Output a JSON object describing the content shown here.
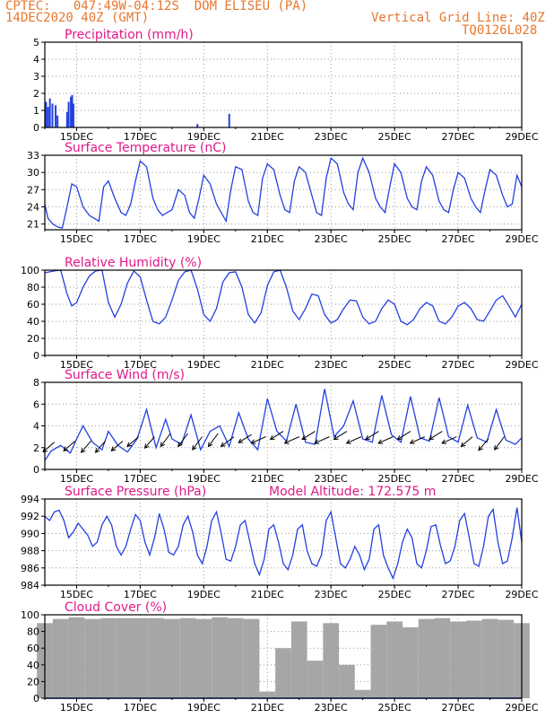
{
  "header": {
    "left_line1": "CPTEC:   047:49W-04:12S  DOM ELISEU (PA)",
    "left_line2": "14DEC2020 40Z (GMT)",
    "right_line1": "Vertical Grid Line: 40Z",
    "right_line2": "TQ0126L028"
  },
  "colors": {
    "header": "#e8762d",
    "title": "#e0198a",
    "line": "#2340e0",
    "bars": "#a6a6a6",
    "arrows": "#000000"
  },
  "x_ticks": [
    "15DEC",
    "17DEC",
    "19DEC",
    "21DEC",
    "23DEC",
    "25DEC",
    "27DEC",
    "29DEC"
  ],
  "x_tick_positions_days": [
    1,
    3,
    5,
    7,
    9,
    11,
    13,
    15
  ],
  "x_range_days": [
    0,
    15
  ],
  "chart_data": [
    {
      "name": "precipitation",
      "type": "bar",
      "title": "Precipitation (mm/h)",
      "ylim": [
        0,
        5
      ],
      "yticks": [
        0,
        1,
        2,
        3,
        4,
        5
      ],
      "x": [
        0.04,
        0.1,
        0.16,
        0.24,
        0.34,
        0.4,
        0.7,
        0.75,
        0.82,
        0.86,
        0.9,
        4.8,
        5.8,
        13.5,
        14.3
      ],
      "values": [
        1.5,
        1.2,
        1.7,
        1.4,
        1.3,
        0.7,
        0.9,
        1.5,
        1.8,
        1.9,
        1.4,
        0.2,
        0.8,
        0.05,
        0.05
      ]
    },
    {
      "name": "surface-temperature",
      "type": "line",
      "title": "Surface Temperature (nC)",
      "ylim": [
        20,
        33
      ],
      "yticks": [
        21,
        24,
        27,
        30,
        33
      ],
      "x": [
        0,
        0.1,
        0.25,
        0.4,
        0.55,
        0.7,
        0.85,
        1.0,
        1.2,
        1.4,
        1.55,
        1.7,
        1.85,
        2.0,
        2.2,
        2.4,
        2.55,
        2.7,
        2.85,
        3.0,
        3.2,
        3.4,
        3.55,
        3.7,
        3.85,
        4.0,
        4.2,
        4.4,
        4.55,
        4.7,
        4.85,
        5.0,
        5.2,
        5.4,
        5.55,
        5.7,
        5.85,
        6.0,
        6.2,
        6.4,
        6.55,
        6.7,
        6.85,
        7.0,
        7.2,
        7.4,
        7.55,
        7.7,
        7.85,
        8.0,
        8.2,
        8.4,
        8.55,
        8.7,
        8.85,
        9.0,
        9.2,
        9.4,
        9.55,
        9.7,
        9.85,
        10.0,
        10.2,
        10.4,
        10.55,
        10.7,
        10.85,
        11.0,
        11.2,
        11.4,
        11.55,
        11.7,
        11.85,
        12.0,
        12.2,
        12.4,
        12.55,
        12.7,
        12.85,
        13.0,
        13.2,
        13.4,
        13.55,
        13.7,
        13.85,
        14.0,
        14.2,
        14.4,
        14.55,
        14.7,
        14.85,
        15.0
      ],
      "values": [
        24.5,
        22.0,
        21.0,
        20.5,
        20.3,
        24.0,
        28.0,
        27.5,
        24.0,
        22.5,
        22.0,
        21.5,
        27.5,
        28.5,
        25.5,
        23.0,
        22.5,
        24.5,
        28.5,
        32.0,
        31.0,
        25.5,
        23.5,
        22.5,
        23.0,
        23.5,
        27.0,
        26.0,
        23.0,
        22.0,
        25.5,
        29.5,
        28.0,
        24.5,
        23.0,
        21.5,
        27.0,
        31.0,
        30.5,
        25.0,
        23.0,
        22.5,
        29.0,
        31.5,
        30.5,
        26.0,
        23.5,
        23.0,
        28.5,
        31.0,
        30.0,
        26.0,
        23.0,
        22.5,
        29.0,
        32.5,
        31.5,
        26.5,
        24.5,
        23.5,
        30.0,
        32.5,
        30.0,
        25.5,
        24.0,
        23.0,
        27.5,
        31.5,
        30.0,
        25.5,
        24.0,
        23.5,
        28.5,
        31.0,
        29.5,
        25.0,
        23.5,
        23.0,
        27.0,
        30.0,
        29.0,
        25.5,
        24.0,
        23.0,
        27.0,
        30.5,
        29.5,
        26.0,
        24.0,
        24.5,
        29.5,
        27.5
      ]
    },
    {
      "name": "relative-humidity",
      "type": "line",
      "title": "Relative Humidity (%)",
      "ylim": [
        0,
        100
      ],
      "yticks": [
        0,
        20,
        40,
        60,
        80,
        100
      ],
      "x": [
        0,
        0.3,
        0.5,
        0.7,
        0.85,
        1.0,
        1.2,
        1.4,
        1.6,
        1.8,
        2.0,
        2.2,
        2.4,
        2.6,
        2.8,
        3.0,
        3.2,
        3.4,
        3.6,
        3.8,
        4.0,
        4.2,
        4.4,
        4.6,
        4.8,
        5.0,
        5.2,
        5.4,
        5.6,
        5.8,
        6.0,
        6.2,
        6.4,
        6.6,
        6.8,
        7.0,
        7.2,
        7.4,
        7.6,
        7.8,
        8.0,
        8.2,
        8.4,
        8.6,
        8.8,
        9.0,
        9.2,
        9.4,
        9.6,
        9.8,
        10.0,
        10.2,
        10.4,
        10.6,
        10.8,
        11.0,
        11.2,
        11.4,
        11.6,
        11.8,
        12.0,
        12.2,
        12.4,
        12.6,
        12.8,
        13.0,
        13.2,
        13.4,
        13.6,
        13.8,
        14.0,
        14.2,
        14.4,
        14.6,
        14.8,
        15.0
      ],
      "values": [
        97,
        99,
        100,
        72,
        58,
        62,
        80,
        93,
        99,
        100,
        62,
        45,
        60,
        85,
        99,
        92,
        65,
        40,
        37,
        45,
        65,
        88,
        98,
        100,
        78,
        48,
        40,
        55,
        86,
        97,
        98,
        80,
        48,
        38,
        50,
        82,
        98,
        100,
        80,
        52,
        42,
        55,
        72,
        70,
        48,
        38,
        42,
        55,
        65,
        64,
        45,
        37,
        40,
        55,
        65,
        60,
        40,
        36,
        42,
        55,
        62,
        58,
        40,
        37,
        45,
        58,
        62,
        55,
        42,
        40,
        52,
        65,
        70,
        58,
        45,
        60
      ]
    },
    {
      "name": "surface-wind",
      "type": "line",
      "title": "Surface Wind (m/s)",
      "ylim": [
        0,
        8
      ],
      "yticks": [
        0,
        2,
        4,
        6,
        8
      ],
      "x": [
        0,
        0.2,
        0.5,
        0.8,
        1.0,
        1.2,
        1.5,
        1.8,
        2.0,
        2.3,
        2.6,
        2.9,
        3.2,
        3.5,
        3.8,
        4.0,
        4.3,
        4.6,
        4.9,
        5.2,
        5.5,
        5.8,
        6.1,
        6.4,
        6.7,
        7.0,
        7.3,
        7.6,
        7.9,
        8.2,
        8.5,
        8.8,
        9.1,
        9.4,
        9.7,
        10.0,
        10.3,
        10.6,
        10.9,
        11.2,
        11.5,
        11.8,
        12.1,
        12.4,
        12.7,
        13.0,
        13.3,
        13.6,
        13.9,
        14.2,
        14.5,
        14.8,
        15.0
      ],
      "values": [
        0.8,
        1.7,
        2.2,
        1.5,
        2.8,
        4.0,
        2.5,
        1.8,
        3.5,
        2.2,
        1.6,
        2.8,
        5.5,
        2.0,
        4.6,
        2.8,
        2.3,
        5.0,
        1.8,
        3.5,
        4.0,
        2.1,
        5.2,
        2.8,
        1.8,
        6.5,
        3.5,
        2.6,
        6.0,
        2.5,
        2.3,
        7.4,
        3.0,
        4.0,
        6.3,
        2.8,
        2.5,
        6.8,
        3.2,
        2.5,
        6.7,
        2.9,
        2.6,
        6.6,
        3.0,
        2.5,
        5.9,
        2.9,
        2.5,
        5.5,
        2.7,
        2.3,
        2.9
      ],
      "arrows": [
        {
          "x": 0.3,
          "speed": 2.5,
          "dir": [
            -0.7,
            -0.6
          ]
        },
        {
          "x": 0.95,
          "speed": 2.6,
          "dir": [
            -0.7,
            -0.6
          ]
        },
        {
          "x": 1.45,
          "speed": 2.6,
          "dir": [
            -0.6,
            -0.7
          ]
        },
        {
          "x": 1.9,
          "speed": 2.6,
          "dir": [
            -0.6,
            -0.7
          ]
        },
        {
          "x": 2.45,
          "speed": 2.6,
          "dir": [
            -0.7,
            -0.6
          ]
        },
        {
          "x": 2.95,
          "speed": 3.0,
          "dir": [
            -0.7,
            -0.6
          ]
        },
        {
          "x": 3.45,
          "speed": 3.0,
          "dir": [
            -0.6,
            -0.7
          ]
        },
        {
          "x": 3.95,
          "speed": 3.3,
          "dir": [
            -0.6,
            -0.8
          ]
        },
        {
          "x": 4.5,
          "speed": 3.3,
          "dir": [
            -0.6,
            -0.8
          ]
        },
        {
          "x": 4.95,
          "speed": 3.0,
          "dir": [
            -0.6,
            -0.8
          ]
        },
        {
          "x": 5.45,
          "speed": 3.3,
          "dir": [
            -0.6,
            -0.8
          ]
        },
        {
          "x": 5.95,
          "speed": 3.0,
          "dir": [
            -0.8,
            -0.6
          ]
        },
        {
          "x": 6.5,
          "speed": 3.2,
          "dir": [
            -0.8,
            -0.5
          ]
        },
        {
          "x": 6.95,
          "speed": 3.0,
          "dir": [
            -0.9,
            -0.4
          ]
        },
        {
          "x": 7.5,
          "speed": 3.5,
          "dir": [
            -0.8,
            -0.5
          ]
        },
        {
          "x": 8.0,
          "speed": 3.0,
          "dir": [
            -0.9,
            -0.4
          ]
        },
        {
          "x": 8.5,
          "speed": 3.5,
          "dir": [
            -0.8,
            -0.5
          ]
        },
        {
          "x": 8.95,
          "speed": 3.0,
          "dir": [
            -0.9,
            -0.4
          ]
        },
        {
          "x": 9.5,
          "speed": 3.5,
          "dir": [
            -0.8,
            -0.5
          ]
        },
        {
          "x": 9.95,
          "speed": 3.0,
          "dir": [
            -0.9,
            -0.4
          ]
        },
        {
          "x": 10.5,
          "speed": 3.5,
          "dir": [
            -0.8,
            -0.5
          ]
        },
        {
          "x": 10.95,
          "speed": 3.0,
          "dir": [
            -0.9,
            -0.4
          ]
        },
        {
          "x": 11.5,
          "speed": 3.5,
          "dir": [
            -0.8,
            -0.5
          ]
        },
        {
          "x": 11.95,
          "speed": 3.0,
          "dir": [
            -0.9,
            -0.4
          ]
        },
        {
          "x": 12.5,
          "speed": 3.5,
          "dir": [
            -0.8,
            -0.5
          ]
        },
        {
          "x": 12.95,
          "speed": 3.0,
          "dir": [
            -0.9,
            -0.4
          ]
        },
        {
          "x": 13.45,
          "speed": 3.0,
          "dir": [
            -0.7,
            -0.6
          ]
        },
        {
          "x": 13.95,
          "speed": 2.8,
          "dir": [
            -0.6,
            -0.7
          ]
        },
        {
          "x": 14.45,
          "speed": 3.0,
          "dir": [
            -0.6,
            -0.8
          ]
        }
      ]
    },
    {
      "name": "surface-pressure",
      "type": "line",
      "title": "Surface Pressure (hPa)",
      "annotation": "Model Altitude: 172.575 m",
      "ylim": [
        984,
        994
      ],
      "yticks": [
        984,
        986,
        988,
        990,
        992,
        994
      ],
      "x": [
        0,
        0.15,
        0.3,
        0.45,
        0.6,
        0.75,
        0.9,
        1.05,
        1.2,
        1.35,
        1.5,
        1.65,
        1.8,
        1.95,
        2.1,
        2.25,
        2.4,
        2.55,
        2.7,
        2.85,
        3.0,
        3.15,
        3.3,
        3.45,
        3.6,
        3.75,
        3.9,
        4.05,
        4.2,
        4.35,
        4.5,
        4.65,
        4.8,
        4.95,
        5.1,
        5.25,
        5.4,
        5.55,
        5.7,
        5.85,
        6.0,
        6.15,
        6.3,
        6.45,
        6.6,
        6.75,
        6.9,
        7.05,
        7.2,
        7.35,
        7.5,
        7.65,
        7.8,
        7.95,
        8.1,
        8.25,
        8.4,
        8.55,
        8.7,
        8.85,
        9.0,
        9.15,
        9.3,
        9.45,
        9.6,
        9.75,
        9.9,
        10.05,
        10.2,
        10.35,
        10.5,
        10.65,
        10.8,
        10.95,
        11.1,
        11.25,
        11.4,
        11.55,
        11.7,
        11.85,
        12.0,
        12.15,
        12.3,
        12.45,
        12.6,
        12.75,
        12.9,
        13.05,
        13.2,
        13.35,
        13.5,
        13.65,
        13.8,
        13.95,
        14.1,
        14.25,
        14.4,
        14.55,
        14.7,
        14.85,
        15.0
      ],
      "values": [
        992,
        991.5,
        992.5,
        992.7,
        991.5,
        989.5,
        990.2,
        991.2,
        990.5,
        989.8,
        988.5,
        989.0,
        991.0,
        992.0,
        991.0,
        988.5,
        987.5,
        988.5,
        990.5,
        992.2,
        991.5,
        989.0,
        987.5,
        989.5,
        992.3,
        990.5,
        987.8,
        987.5,
        988.5,
        991.0,
        992.0,
        990.2,
        987.5,
        986.5,
        988.5,
        991.5,
        992.5,
        990.0,
        987.0,
        986.8,
        988.5,
        991.0,
        991.5,
        989.0,
        986.5,
        985.2,
        987.0,
        990.5,
        991.0,
        989.0,
        986.5,
        985.8,
        987.5,
        990.5,
        991.0,
        988.0,
        986.5,
        986.2,
        987.5,
        991.5,
        992.5,
        989.5,
        986.5,
        986.0,
        987.0,
        988.5,
        987.5,
        985.8,
        987.0,
        990.5,
        991.0,
        987.5,
        986.0,
        984.8,
        986.5,
        989.0,
        990.5,
        989.5,
        986.5,
        986.0,
        988.0,
        990.8,
        991.0,
        988.5,
        986.5,
        986.8,
        988.5,
        991.5,
        992.3,
        989.5,
        986.5,
        986.2,
        988.5,
        992.0,
        992.8,
        989.0,
        986.5,
        986.8,
        989.5,
        993.0,
        989.0
      ]
    },
    {
      "name": "cloud-cover",
      "type": "bar",
      "title": "Cloud Cover (%)",
      "ylim": [
        0,
        100
      ],
      "yticks": [
        0,
        20,
        40,
        60,
        80,
        100
      ],
      "x": [
        0,
        0.5,
        1.0,
        1.5,
        2.0,
        2.5,
        3.0,
        3.5,
        4.0,
        4.5,
        5.0,
        5.5,
        6.0,
        6.5,
        7.0,
        7.5,
        8.0,
        8.5,
        9.0,
        9.5,
        10.0,
        10.5,
        11.0,
        11.5,
        12.0,
        12.5,
        13.0,
        13.5,
        14.0,
        14.5,
        15.0
      ],
      "values": [
        90,
        95,
        97,
        95,
        96,
        96,
        96,
        96,
        95,
        96,
        95,
        97,
        96,
        95,
        8,
        60,
        92,
        45,
        90,
        40,
        10,
        88,
        92,
        85,
        95,
        96,
        92,
        93,
        95,
        94,
        90
      ]
    }
  ]
}
